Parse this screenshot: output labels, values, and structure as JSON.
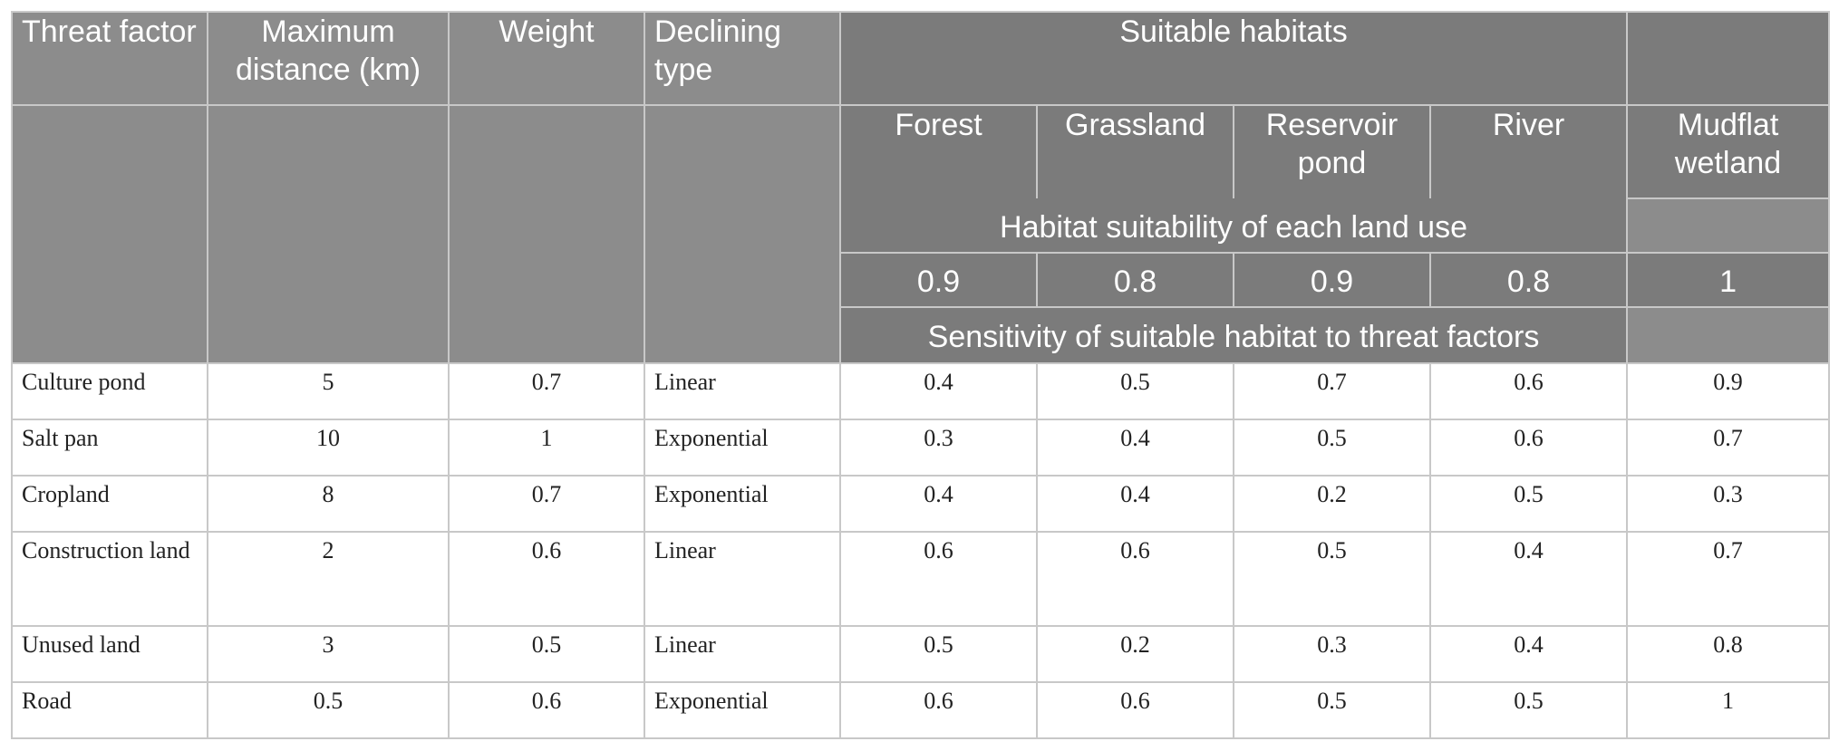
{
  "headers": {
    "threat_factor": "Threat factor",
    "max_distance": "Maximum distance (km)",
    "weight": "Weight",
    "declining_type": "Declining type",
    "suitable_habitats": "Suitable habitats",
    "habitats": [
      "Forest",
      "Grassland",
      "Reservoir pond",
      "River",
      "Mudflat wetland"
    ],
    "habitat_suitability_label": "Habitat suitability of each land use",
    "suitability_values": [
      "0.9",
      "0.8",
      "0.9",
      "0.8",
      "1"
    ],
    "sensitivity_label": "Sensitivity of suitable habitat to threat factors"
  },
  "rows": [
    {
      "factor": "Culture pond",
      "distance": "5",
      "weight": "0.7",
      "type": "Linear",
      "values": [
        "0.4",
        "0.5",
        "0.7",
        "0.6",
        "0.9"
      ]
    },
    {
      "factor": "Salt pan",
      "distance": "10",
      "weight": "1",
      "type": "Exponential",
      "values": [
        "0.3",
        "0.4",
        "0.5",
        "0.6",
        "0.7"
      ]
    },
    {
      "factor": "Cropland",
      "distance": "8",
      "weight": "0.7",
      "type": "Exponential",
      "values": [
        "0.4",
        "0.4",
        "0.2",
        "0.5",
        "0.3"
      ]
    },
    {
      "factor": "Construction land",
      "distance": "2",
      "weight": "0.6",
      "type": "Linear",
      "values": [
        "0.6",
        "0.6",
        "0.5",
        "0.4",
        "0.7"
      ]
    },
    {
      "factor": "Unused land",
      "distance": "3",
      "weight": "0.5",
      "type": "Linear",
      "values": [
        "0.5",
        "0.2",
        "0.3",
        "0.4",
        "0.8"
      ]
    },
    {
      "factor": "Road",
      "distance": "0.5",
      "weight": "0.6",
      "type": "Exponential",
      "values": [
        "0.6",
        "0.6",
        "0.5",
        "0.5",
        "1"
      ]
    }
  ]
}
